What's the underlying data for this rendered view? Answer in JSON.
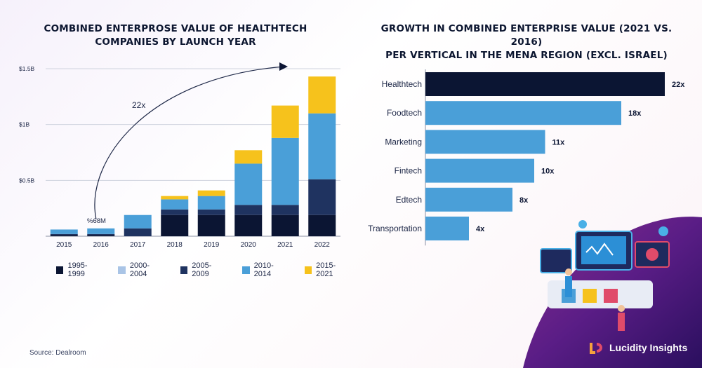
{
  "left_chart": {
    "title_line1": "COMBINED ENTERPROSE VALUE OF HEALTHTECH",
    "title_line2": "COMPANIES BY LAUNCH YEAR",
    "annotation_growth": "22x",
    "annotation_value": "%68M"
  },
  "right_chart": {
    "title_line1": "GROWTH IN COMBINED ENTERPRISE VALUE (2021 VS. 2016)",
    "title_line2": "PER VERTICAL IN THE MENA REGION (EXCL. ISRAEL)"
  },
  "legend": [
    {
      "label": "1995-1999",
      "color": "#0b1533"
    },
    {
      "label": "2000-2004",
      "color": "#a9c4e6"
    },
    {
      "label": "2005-2009",
      "color": "#1f3360"
    },
    {
      "label": "2010-2014",
      "color": "#4a9fd8"
    },
    {
      "label": "2015-2021",
      "color": "#f6c21c"
    }
  ],
  "source": "Source: Dealroom",
  "brand": "Lucidity Insights",
  "chart_data": [
    {
      "type": "bar",
      "stacked": true,
      "categories": [
        "2015",
        "2016",
        "2017",
        "2018",
        "2019",
        "2020",
        "2021",
        "2022"
      ],
      "ylim": [
        0,
        1.5
      ],
      "yticks": [
        {
          "value": 0.5,
          "label": "$0.5B"
        },
        {
          "value": 1.0,
          "label": "$1B"
        },
        {
          "value": 1.5,
          "label": "$1.5B"
        }
      ],
      "grid": true,
      "legend_position": "bottom",
      "series": [
        {
          "name": "1995-1999",
          "color": "#0b1533",
          "values": [
            0.01,
            0.01,
            0.0,
            0.19,
            0.19,
            0.19,
            0.19,
            0.19
          ]
        },
        {
          "name": "2000-2004",
          "color": "#a9c4e6",
          "values": [
            0.0,
            0.0,
            0.0,
            0.0,
            0.0,
            0.0,
            0.0,
            0.0
          ]
        },
        {
          "name": "2005-2009",
          "color": "#1f3360",
          "values": [
            0.01,
            0.01,
            0.07,
            0.05,
            0.05,
            0.09,
            0.09,
            0.32
          ]
        },
        {
          "name": "2010-2014",
          "color": "#4a9fd8",
          "values": [
            0.04,
            0.05,
            0.12,
            0.09,
            0.12,
            0.37,
            0.6,
            0.59
          ]
        },
        {
          "name": "2015-2021",
          "color": "#f6c21c",
          "values": [
            0.0,
            0.0,
            0.0,
            0.03,
            0.05,
            0.12,
            0.29,
            0.33
          ]
        }
      ]
    },
    {
      "type": "bar",
      "orientation": "horizontal",
      "categories": [
        "Healthtech",
        "Foodtech",
        "Marketing",
        "Fintech",
        "Edtech",
        "Transportation"
      ],
      "values": [
        22,
        18,
        11,
        10,
        8,
        4
      ],
      "value_labels": [
        "22x",
        "18x",
        "11x",
        "10x",
        "8x",
        "4x"
      ],
      "colors": [
        "#0b1533",
        "#4a9fd8",
        "#4a9fd8",
        "#4a9fd8",
        "#4a9fd8",
        "#4a9fd8"
      ],
      "xlim": [
        0,
        22
      ]
    }
  ]
}
